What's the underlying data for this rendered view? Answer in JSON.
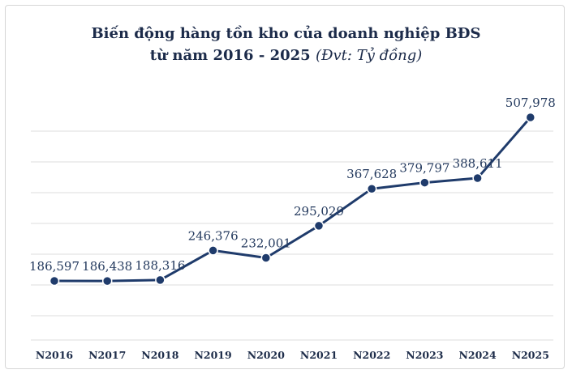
{
  "chart_data": {
    "type": "line",
    "title_line1": "Biến động hàng tồn kho của doanh nghiệp BĐS",
    "title_line2": "từ năm 2016 - 2025",
    "title_unit": "(Đvt: Tỷ đồng)",
    "categories": [
      "N2016",
      "N2017",
      "N2018",
      "N2019",
      "N2020",
      "N2021",
      "N2022",
      "N2023",
      "N2024",
      "N2025"
    ],
    "values": [
      186597,
      186438,
      188316,
      246376,
      232001,
      295029,
      367628,
      379797,
      388611,
      507978
    ],
    "value_labels": [
      "186,597",
      "186,438",
      "188,316",
      "246,376",
      "232,001",
      "295,029",
      "367,628",
      "379,797",
      "388,611",
      "507,978"
    ],
    "grid": true,
    "legend": "none",
    "colors": {
      "line": "#1f3b6b",
      "marker": "#1f3b6b",
      "grid": "#dcdcdc"
    }
  }
}
